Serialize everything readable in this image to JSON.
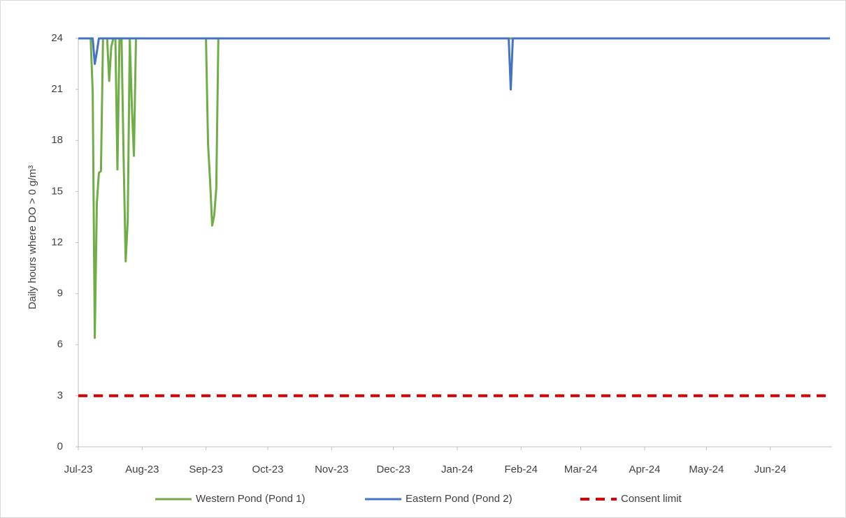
{
  "chart_data": {
    "type": "line",
    "y_label": "Daily hours where DO > 0 g/m³",
    "categories": [
      "Jul-23",
      null,
      null,
      null,
      null,
      null,
      null,
      null,
      null,
      null,
      null,
      null,
      null,
      null,
      null,
      null,
      null,
      null,
      null,
      null,
      null,
      null,
      null,
      null,
      null,
      null,
      null,
      null,
      null,
      null,
      null,
      "Aug-23",
      null,
      null,
      null,
      null,
      null,
      null,
      null,
      null,
      null,
      null,
      null,
      null,
      null,
      null,
      null,
      null,
      null,
      null,
      null,
      null,
      null,
      null,
      null,
      null,
      null,
      null,
      null,
      null,
      null,
      null,
      "Sep-23",
      null,
      null,
      null,
      null,
      null,
      null,
      null,
      null,
      null,
      null,
      null,
      null,
      null,
      null,
      null,
      null,
      null,
      null,
      null,
      null,
      null,
      null,
      null,
      null,
      null,
      null,
      null,
      null,
      null,
      "Oct-23",
      null,
      null,
      null,
      null,
      null,
      null,
      null,
      null,
      null,
      null,
      null,
      null,
      null,
      null,
      null,
      null,
      null,
      null,
      null,
      null,
      null,
      null,
      null,
      null,
      null,
      null,
      null,
      null,
      null,
      null,
      "Nov-23",
      null,
      null,
      null,
      null,
      null,
      null,
      null,
      null,
      null,
      null,
      null,
      null,
      null,
      null,
      null,
      null,
      null,
      null,
      null,
      null,
      null,
      null,
      null,
      null,
      null,
      null,
      null,
      null,
      null,
      "Dec-23",
      null,
      null,
      null,
      null,
      null,
      null,
      null,
      null,
      null,
      null,
      null,
      null,
      null,
      null,
      null,
      null,
      null,
      null,
      null,
      null,
      null,
      null,
      null,
      null,
      null,
      null,
      null,
      null,
      null,
      null,
      "Jan-24",
      null,
      null,
      null,
      null,
      null,
      null,
      null,
      null,
      null,
      null,
      null,
      null,
      null,
      null,
      null,
      null,
      null,
      null,
      null,
      null,
      null,
      null,
      null,
      null,
      null,
      null,
      null,
      null,
      null,
      null,
      "Feb-24",
      null,
      null,
      null,
      null,
      null,
      null,
      null,
      null,
      null,
      null,
      null,
      null,
      null,
      null,
      null,
      null,
      null,
      null,
      null,
      null,
      null,
      null,
      null,
      null,
      null,
      null,
      null,
      null,
      "Mar-24",
      null,
      null,
      null,
      null,
      null,
      null,
      null,
      null,
      null,
      null,
      null,
      null,
      null,
      null,
      null,
      null,
      null,
      null,
      null,
      null,
      null,
      null,
      null,
      null,
      null,
      null,
      null,
      null,
      null,
      null,
      "Apr-24",
      null,
      null,
      null,
      null,
      null,
      null,
      null,
      null,
      null,
      null,
      null,
      null,
      null,
      null,
      null,
      null,
      null,
      null,
      null,
      null,
      null,
      null,
      null,
      null,
      null,
      null,
      null,
      null,
      null,
      "May-24",
      null,
      null,
      null,
      null,
      null,
      null,
      null,
      null,
      null,
      null,
      null,
      null,
      null,
      null,
      null,
      null,
      null,
      null,
      null,
      null,
      null,
      null,
      null,
      null,
      null,
      null,
      null,
      null,
      null,
      null,
      "Jun-24",
      null,
      null,
      null,
      null,
      null,
      null,
      null,
      null,
      null,
      null,
      null,
      null,
      null,
      null,
      null,
      null,
      null,
      null,
      null,
      null,
      null,
      null,
      null,
      null,
      null,
      null,
      null,
      null,
      null
    ],
    "series": [
      {
        "name": "Western Pond (Pond 1)",
        "color": "#70ad47",
        "values": [
          24,
          24,
          24,
          24,
          24,
          24,
          24,
          20.8,
          6.4,
          14.3,
          16.1,
          16.2,
          24,
          24,
          24,
          21.5,
          23.5,
          24,
          24,
          16.3,
          24,
          24,
          17,
          10.9,
          13.3,
          24,
          20,
          17.1,
          24,
          24,
          24,
          24,
          24,
          24,
          24,
          24,
          24,
          24,
          24,
          24,
          24,
          24,
          24,
          24,
          24,
          24,
          24,
          24,
          24,
          24,
          24,
          24,
          24,
          24,
          24,
          24,
          24,
          24,
          24,
          24,
          24,
          24,
          24,
          17.8,
          15.6,
          13,
          13.6,
          15.2,
          24,
          24,
          24,
          24,
          24,
          24,
          24,
          24,
          24,
          24,
          24,
          24,
          24,
          24,
          24,
          24,
          24,
          24,
          24,
          24,
          24,
          24,
          24,
          24,
          24,
          24,
          24,
          24,
          24,
          24,
          24,
          24,
          24,
          24,
          24,
          24,
          24,
          24,
          24,
          24,
          24,
          24,
          24,
          24,
          24,
          24,
          24,
          24,
          24,
          24,
          24,
          24,
          24,
          24,
          24,
          24,
          24,
          24,
          24,
          24,
          24,
          24,
          24,
          24,
          24,
          24,
          24,
          24,
          24,
          24,
          24,
          24,
          24,
          24,
          24,
          24,
          24,
          24,
          24,
          24,
          24,
          24,
          24,
          24,
          24,
          24,
          24,
          24,
          24,
          24,
          24,
          24,
          24,
          24,
          24,
          24,
          24,
          24,
          24,
          24,
          24,
          24,
          24,
          24,
          24,
          24,
          24,
          24,
          24,
          24,
          24,
          24,
          24,
          24,
          24,
          24,
          24,
          24,
          24,
          24,
          24,
          24,
          24,
          24,
          24,
          24,
          24,
          24,
          24,
          24,
          24,
          24,
          24,
          24,
          24,
          24,
          24,
          24,
          24,
          24,
          24,
          24,
          24,
          24,
          24,
          24,
          24,
          24,
          24,
          24,
          24,
          24,
          24,
          24,
          24,
          24,
          24,
          24,
          24,
          24,
          24,
          24,
          24,
          24,
          24,
          24,
          24,
          24,
          24,
          24,
          24,
          24,
          24,
          24,
          24,
          24,
          24,
          24,
          24,
          24,
          24,
          24,
          24,
          24,
          24,
          24,
          24,
          24,
          24,
          24,
          24,
          24,
          24,
          24,
          24,
          24,
          24,
          24,
          24,
          24,
          24,
          24,
          24,
          24,
          24,
          24,
          24,
          24,
          24,
          24,
          24,
          24,
          24,
          24,
          24,
          24,
          24,
          24,
          24,
          24,
          24,
          24,
          24,
          24,
          24,
          24,
          24,
          24,
          24,
          24,
          24,
          24,
          24,
          24,
          24,
          24,
          24,
          24,
          24,
          24,
          24,
          24,
          24,
          24,
          24,
          24,
          24,
          24,
          24,
          24,
          24,
          24,
          24,
          24,
          24,
          24,
          24,
          24,
          24,
          24,
          24,
          24,
          24,
          24,
          24,
          24,
          24,
          24,
          24,
          24,
          24,
          24,
          24,
          24,
          24,
          24,
          24,
          24,
          24,
          24,
          24,
          24,
          24,
          24,
          24,
          24,
          24,
          24,
          24,
          24,
          24,
          24,
          24,
          24,
          24,
          24,
          24,
          24
        ]
      },
      {
        "name": "Eastern Pond (Pond 2)",
        "color": "#4472c4",
        "values": [
          24,
          24,
          24,
          24,
          24,
          24,
          24,
          24,
          22.5,
          23.2,
          24,
          24,
          24,
          24,
          24,
          24,
          24,
          24,
          24,
          24,
          24,
          24,
          24,
          24,
          24,
          24,
          24,
          24,
          24,
          24,
          24,
          24,
          24,
          24,
          24,
          24,
          24,
          24,
          24,
          24,
          24,
          24,
          24,
          24,
          24,
          24,
          24,
          24,
          24,
          24,
          24,
          24,
          24,
          24,
          24,
          24,
          24,
          24,
          24,
          24,
          24,
          24,
          24,
          24,
          24,
          24,
          24,
          24,
          24,
          24,
          24,
          24,
          24,
          24,
          24,
          24,
          24,
          24,
          24,
          24,
          24,
          24,
          24,
          24,
          24,
          24,
          24,
          24,
          24,
          24,
          24,
          24,
          24,
          24,
          24,
          24,
          24,
          24,
          24,
          24,
          24,
          24,
          24,
          24,
          24,
          24,
          24,
          24,
          24,
          24,
          24,
          24,
          24,
          24,
          24,
          24,
          24,
          24,
          24,
          24,
          24,
          24,
          24,
          24,
          24,
          24,
          24,
          24,
          24,
          24,
          24,
          24,
          24,
          24,
          24,
          24,
          24,
          24,
          24,
          24,
          24,
          24,
          24,
          24,
          24,
          24,
          24,
          24,
          24,
          24,
          24,
          24,
          24,
          24,
          24,
          24,
          24,
          24,
          24,
          24,
          24,
          24,
          24,
          24,
          24,
          24,
          24,
          24,
          24,
          24,
          24,
          24,
          24,
          24,
          24,
          24,
          24,
          24,
          24,
          24,
          24,
          24,
          24,
          24,
          24,
          24,
          24,
          24,
          24,
          24,
          24,
          24,
          24,
          24,
          24,
          24,
          24,
          24,
          24,
          24,
          24,
          24,
          24,
          24,
          24,
          24,
          24,
          24,
          24,
          24,
          21,
          24,
          24,
          24,
          24,
          24,
          24,
          24,
          24,
          24,
          24,
          24,
          24,
          24,
          24,
          24,
          24,
          24,
          24,
          24,
          24,
          24,
          24,
          24,
          24,
          24,
          24,
          24,
          24,
          24,
          24,
          24,
          24,
          24,
          24,
          24,
          24,
          24,
          24,
          24,
          24,
          24,
          24,
          24,
          24,
          24,
          24,
          24,
          24,
          24,
          24,
          24,
          24,
          24,
          24,
          24,
          24,
          24,
          24,
          24,
          24,
          24,
          24,
          24,
          24,
          24,
          24,
          24,
          24,
          24,
          24,
          24,
          24,
          24,
          24,
          24,
          24,
          24,
          24,
          24,
          24,
          24,
          24,
          24,
          24,
          24,
          24,
          24,
          24,
          24,
          24,
          24,
          24,
          24,
          24,
          24,
          24,
          24,
          24,
          24,
          24,
          24,
          24,
          24,
          24,
          24,
          24,
          24,
          24,
          24,
          24,
          24,
          24,
          24,
          24,
          24,
          24,
          24,
          24,
          24,
          24,
          24,
          24,
          24,
          24,
          24,
          24,
          24,
          24,
          24,
          24,
          24,
          24,
          24,
          24,
          24,
          24,
          24,
          24,
          24,
          24,
          24,
          24,
          24,
          24,
          24,
          24,
          24,
          24,
          24,
          24,
          24,
          24,
          24,
          24,
          24
        ]
      }
    ],
    "consent_limit": {
      "name": "Consent limit",
      "value": 3,
      "color": "#e00000"
    },
    "ylim": [
      0,
      24
    ],
    "yticks": [
      0,
      3,
      6,
      9,
      12,
      15,
      18,
      21,
      24
    ],
    "grid": false
  }
}
